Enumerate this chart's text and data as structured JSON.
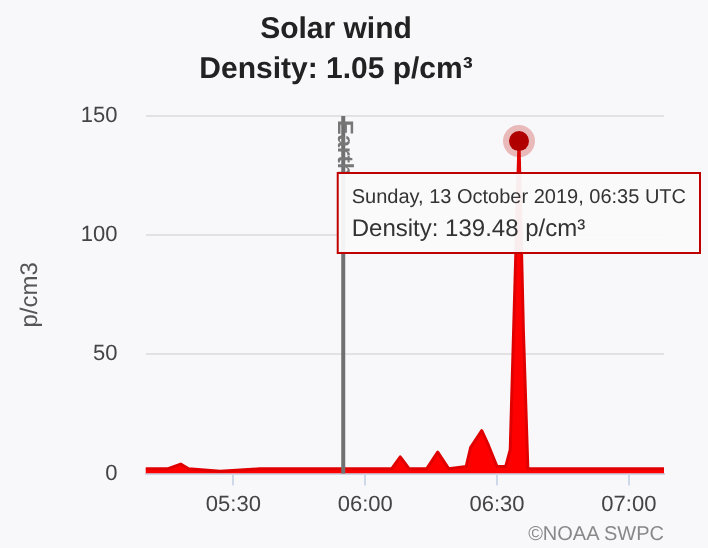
{
  "chart_data": {
    "type": "area",
    "title": "Solar wind",
    "subtitle": "Density: 1.05 p/cm³",
    "ylabel": "p/cm3",
    "x": [
      5.1667,
      5.25,
      5.3,
      5.33,
      5.45,
      5.6,
      5.75,
      5.8,
      5.9,
      6.0,
      6.1,
      6.133,
      6.167,
      6.233,
      6.275,
      6.317,
      6.383,
      6.4,
      6.442,
      6.467,
      6.5,
      6.533,
      6.55,
      6.5833,
      6.6,
      6.617,
      6.7,
      6.85,
      7.0,
      7.1333
    ],
    "series": [
      {
        "color": "#e00000",
        "values": [
          2,
          2,
          4,
          2,
          1,
          2,
          2,
          2,
          2,
          2,
          2,
          7,
          2,
          2,
          9,
          2,
          3,
          11,
          18,
          12,
          3,
          3,
          10,
          139.48,
          60,
          2,
          2,
          2,
          2,
          2
        ]
      }
    ],
    "xlim": [
      5.1667,
      7.1333
    ],
    "xticks": [
      {
        "value": 5.5,
        "label": "05:30"
      },
      {
        "value": 6.0,
        "label": "06:00"
      },
      {
        "value": 6.5,
        "label": "06:30"
      },
      {
        "value": 7.0,
        "label": "07:00"
      }
    ],
    "ylim": [
      0,
      150
    ],
    "yticks": [
      0,
      50,
      100,
      150
    ],
    "grid": "y",
    "legend": false,
    "marker": "none",
    "ref_lines": [
      {
        "axis": "x",
        "value": 5.9167,
        "label": "Earth",
        "color": "#707070"
      }
    ],
    "annotations": [
      {
        "text": "Sunday, 13 October 2019, 06:35 UTC\nDensity: 139.48 p/cm³",
        "x": 6.5833,
        "y": 139.48
      },
      "©NOAA SWPC"
    ]
  }
}
